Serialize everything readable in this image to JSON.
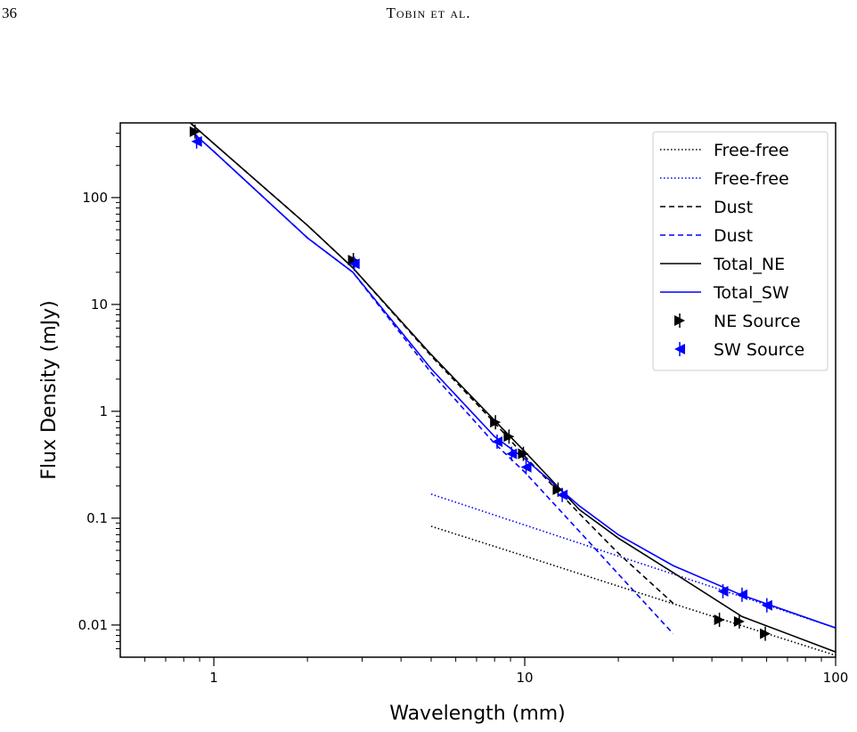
{
  "page_number": "36",
  "running_head": "Tobin et al.",
  "chart_data": {
    "type": "line",
    "xlabel": "Wavelength (mm)",
    "ylabel": "Flux Density (mJy)",
    "xscale": "log",
    "yscale": "log",
    "xlim": [
      0.5,
      100
    ],
    "ylim": [
      0.005,
      500
    ],
    "xticks": [
      1,
      10,
      100
    ],
    "yticks": [
      0.01,
      0.1,
      1,
      10,
      100
    ],
    "xminorticks": [
      0.6,
      0.7,
      0.8,
      0.9,
      2,
      3,
      4,
      5,
      6,
      7,
      8,
      9,
      20,
      30,
      40,
      50,
      60,
      70,
      80,
      90
    ],
    "yminorticks": [
      0.006,
      0.007,
      0.008,
      0.009,
      0.02,
      0.03,
      0.04,
      0.05,
      0.06,
      0.07,
      0.08,
      0.09,
      0.2,
      0.3,
      0.4,
      0.5,
      0.6,
      0.7,
      0.8,
      0.9,
      2,
      3,
      4,
      5,
      6,
      7,
      8,
      9,
      20,
      30,
      40,
      50,
      60,
      70,
      80,
      90,
      200,
      300,
      400
    ],
    "legend": "upper right",
    "series": [
      {
        "name": "Free-free",
        "color": "#000000",
        "style": "dotted",
        "x": [
          5,
          10,
          20,
          50,
          100
        ],
        "values": [
          0.084,
          0.0442,
          0.0231,
          0.00985,
          0.0052
        ]
      },
      {
        "name": "Free-free",
        "color": "#0000ff",
        "style": "dotted",
        "x": [
          5,
          10,
          20,
          50,
          100
        ],
        "values": [
          0.168,
          0.0862,
          0.0442,
          0.0184,
          0.0094
        ]
      },
      {
        "name": "Dust",
        "color": "#000000",
        "style": "dashed",
        "x": [
          0.84,
          1,
          2,
          2.8,
          5,
          8,
          10,
          15,
          20,
          30
        ],
        "values": [
          500,
          320,
          55,
          22,
          3.3,
          0.78,
          0.38,
          0.11,
          0.047,
          0.016
        ]
      },
      {
        "name": "Dust",
        "color": "#0000ff",
        "style": "dashed",
        "x": [
          0.86,
          1,
          2,
          2.8,
          5,
          8,
          10,
          15,
          20,
          30
        ],
        "values": [
          400,
          270,
          42,
          20,
          2.3,
          0.5,
          0.27,
          0.075,
          0.03,
          0.0083
        ]
      },
      {
        "name": "Total_NE",
        "color": "#000000",
        "style": "solid",
        "x": [
          0.84,
          1,
          2,
          2.8,
          5,
          8,
          10,
          15,
          20,
          30,
          50,
          100
        ],
        "values": [
          500,
          320,
          55,
          22,
          3.4,
          0.82,
          0.42,
          0.12,
          0.065,
          0.031,
          0.012,
          0.0056
        ]
      },
      {
        "name": "Total_SW",
        "color": "#0000ff",
        "style": "solid",
        "x": [
          0.86,
          1,
          2,
          2.8,
          5,
          8,
          10,
          15,
          20,
          30,
          50,
          100
        ],
        "values": [
          400,
          270,
          42,
          20,
          2.5,
          0.58,
          0.36,
          0.13,
          0.07,
          0.036,
          0.019,
          0.0094
        ]
      },
      {
        "name": "NE Source",
        "color": "#000000",
        "style": "marker",
        "marker": "right",
        "x": [
          0.87,
          2.81,
          8.05,
          8.9,
          9.9,
          12.8,
          42.3,
          49,
          59.4
        ],
        "values": [
          414,
          26,
          0.79,
          0.58,
          0.4,
          0.185,
          0.0112,
          0.0108,
          0.0083
        ]
      },
      {
        "name": "SW Source",
        "color": "#0000ff",
        "style": "marker",
        "marker": "left",
        "x": [
          0.88,
          2.83,
          8.15,
          9.07,
          10.1,
          13.2,
          43.4,
          50,
          60.1
        ],
        "values": [
          335,
          24,
          0.52,
          0.4,
          0.3,
          0.165,
          0.0207,
          0.0192,
          0.0153
        ]
      }
    ]
  }
}
